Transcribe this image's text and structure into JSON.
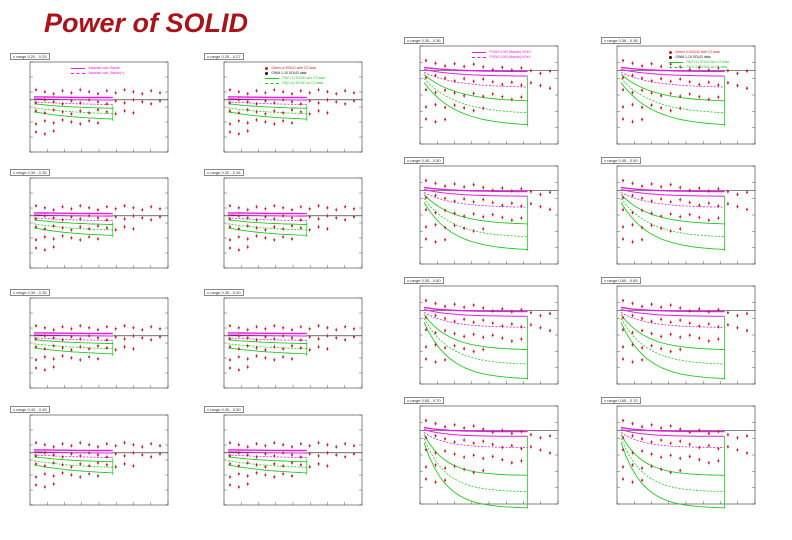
{
  "slide": {
    "title": "Power of SOLID"
  },
  "colors": {
    "title": "#a8141a",
    "data_points": "#d4141e",
    "magenta_band": "#e020e0",
    "green_band": "#22c822",
    "frame": "#333333"
  },
  "legend_labels": {
    "magenta_solid": "Aslanian calc. Bardin",
    "magenta_dashed": "Aslanian calc. Bardin(+)",
    "red_squares": "Green 4=SOLID with C2 data",
    "triangles": "GWM 1-15 SOLID data",
    "green_solid": "Fit(C=1) SOLID w/o C2 data",
    "green_dashed": "Fit(C=1) SOLID w/ C2 data",
    "pvdis_solid": "PVDIS 1000 (Bardin) 4GeV",
    "pvdis_dashed": "PVDIS 1000 (Bardin) 6GeV"
  },
  "chart_data": [
    {
      "type": "scatter",
      "title": "x range 0.20 - 0.25",
      "decay": 0.8,
      "spread": 0.9
    },
    {
      "type": "scatter",
      "title": "x range 0.25 - 0.27",
      "decay": 0.8,
      "spread": 0.9
    },
    {
      "type": "scatter",
      "title": "x range 0.35 - 0.36",
      "decay": 1.6,
      "spread": 1.0
    },
    {
      "type": "scatter",
      "title": "x range 0.36 - 0.38",
      "decay": 1.6,
      "spread": 1.0
    },
    {
      "type": "scatter",
      "title": "x range 0.30 - 0.35",
      "decay": 0.9,
      "spread": 0.9
    },
    {
      "type": "scatter",
      "title": "x range 0.32 - 0.34",
      "decay": 0.9,
      "spread": 0.9
    },
    {
      "type": "scatter",
      "title": "x range 0.45 - 0.50",
      "decay": 1.8,
      "spread": 1.1
    },
    {
      "type": "scatter",
      "title": "x range 0.45 - 0.50",
      "decay": 1.8,
      "spread": 1.1
    },
    {
      "type": "scatter",
      "title": "x range 0.30 - 0.35",
      "decay": 0.7,
      "spread": 0.8
    },
    {
      "type": "scatter",
      "title": "x range 0.35 - 0.40",
      "decay": 0.7,
      "spread": 0.8
    },
    {
      "type": "scatter",
      "title": "x range 0.55 - 0.60",
      "decay": 2.0,
      "spread": 1.3
    },
    {
      "type": "scatter",
      "title": "x range 0.60 - 0.65",
      "decay": 2.0,
      "spread": 1.3
    },
    {
      "type": "scatter",
      "title": "x range 0.40 - 0.45",
      "decay": 0.8,
      "spread": 1.0
    },
    {
      "type": "scatter",
      "title": "x range 0.45 - 0.50",
      "decay": 0.8,
      "spread": 1.0
    },
    {
      "type": "scatter",
      "title": "x range 0.65 - 0.70",
      "decay": 2.4,
      "spread": 1.5
    },
    {
      "type": "scatter",
      "title": "x range 0.65 - 0.70",
      "decay": 2.4,
      "spread": 1.5
    }
  ]
}
